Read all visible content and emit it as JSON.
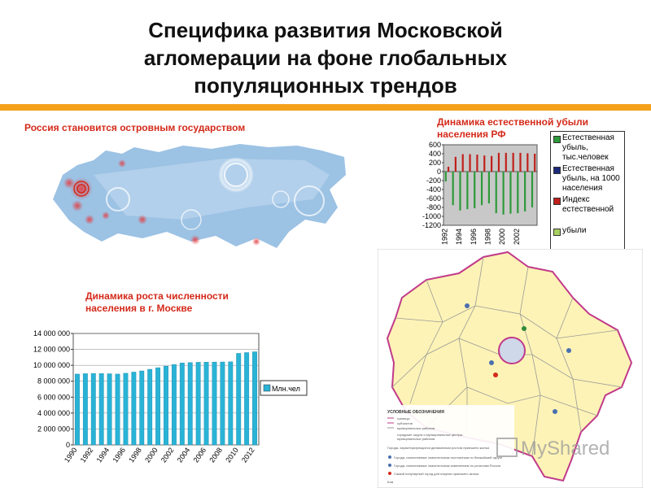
{
  "slide": {
    "title_lines": [
      "Специфика развития Московской",
      "агломерации на фоне глобальных",
      "популяционных трендов"
    ]
  },
  "russia_map": {
    "caption": "Россия становится островным государством",
    "colors": {
      "land": "#8fb8de",
      "land_light": "#bcd6ee",
      "hotspot": "#e0444a"
    }
  },
  "natural_decline": {
    "caption_lines": [
      "Динамика естественной убыли",
      "населения РФ"
    ],
    "legend": {
      "entries": [
        {
          "label": "Естественная убыль, тыс.человек",
          "color": "#2e9a3a"
        },
        {
          "label": "Естественная убыль, на 1000 населения",
          "color": "#1b2a7a"
        },
        {
          "label": "Индекс естественной",
          "color": "#c0201c"
        },
        {
          "label": "убыли",
          "color": "#a8d060"
        }
      ]
    },
    "chart_data": {
      "type": "bar",
      "x": [
        1992,
        1993,
        1994,
        1995,
        1996,
        1997,
        1998,
        1999,
        2000,
        2001,
        2002,
        2003,
        2004
      ],
      "xticks": [
        "1992",
        "1994",
        "1996",
        "1998",
        "2000",
        "2002"
      ],
      "yticks": [
        "600",
        "400",
        "200",
        "0",
        "-200",
        "-400",
        "-600",
        "-800",
        "-1000",
        "-1200"
      ],
      "ylim": [
        -1200,
        600
      ],
      "series": [
        {
          "name": "Естественная убыль, тыс.человек",
          "color": "#2e9a3a",
          "values": [
            -220,
            -750,
            -870,
            -840,
            -820,
            -750,
            -710,
            -930,
            -960,
            -940,
            -930,
            -890,
            -800
          ]
        },
        {
          "name": "Индекс естественной",
          "color": "#c0201c",
          "values": [
            110,
            330,
            390,
            390,
            380,
            360,
            350,
            420,
            420,
            420,
            420,
            410,
            400
          ]
        }
      ],
      "colors": {
        "bg": "#c8c8c8"
      }
    }
  },
  "moscow_growth": {
    "caption_lines": [
      "Динамика роста численности",
      "населения в г. Москве"
    ],
    "chart_data": {
      "type": "bar",
      "categories": [
        "1990",
        "1991",
        "1992",
        "1993",
        "1994",
        "1995",
        "1996",
        "1997",
        "1998",
        "1999",
        "2000",
        "2001",
        "2002",
        "2003",
        "2004",
        "2005",
        "2006",
        "2007",
        "2008",
        "2009",
        "2010",
        "2011",
        "2012"
      ],
      "xticks": [
        "1990",
        "1992",
        "1994",
        "1996",
        "1998",
        "2000",
        "2002",
        "2004",
        "2006",
        "2008",
        "2010",
        "2012"
      ],
      "yticks": [
        "14 000 000",
        "12 000 000",
        "10 000 000",
        "8 000 000",
        "6 000 000",
        "4 000 000",
        "2 000 000",
        "0"
      ],
      "series": [
        {
          "name": "Млн.чел",
          "color": "#29b3d6",
          "values": [
            8900000,
            8950000,
            8980000,
            8960000,
            8940000,
            8900000,
            9000000,
            9150000,
            9300000,
            9500000,
            9700000,
            9900000,
            10100000,
            10300000,
            10350000,
            10380000,
            10400000,
            10410000,
            10420000,
            10440000,
            11500000,
            11600000,
            11700000
          ]
        }
      ],
      "ylim": [
        0,
        14000000
      ]
    }
  },
  "moscow_region_map": {
    "legend_title": "УСЛОВНЫЕ ОБОЗНАЧЕНИЯ",
    "legend_items": [
      "границы",
      "субъектов",
      "муниципальных районов",
      "городские округа и муниципальные центры",
      "муниципальных районов"
    ],
    "legend_note": "Города, характеризующиеся динамичным ростом приезжего жилья",
    "legend_items_2": [
      "Города, наполняемые значительным постоянным по ближайшей округе",
      "Города, наполняемые значительным изменением по регионам России",
      "Самый популярный город для покупки приезжего жилья"
    ],
    "legend_footer": "Ком",
    "colors": {
      "fill": "#fdf3b6",
      "border": "#c13a8a",
      "core": "#cfd8e8"
    }
  },
  "watermark": {
    "text": "MyShared"
  }
}
